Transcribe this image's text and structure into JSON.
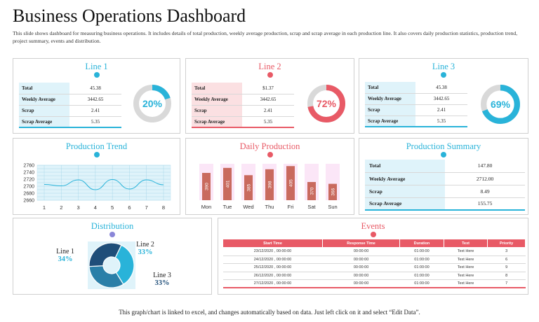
{
  "header": {
    "title": "Business Operations Dashboard",
    "subtitle": "This slide shows dashboard for measuring business operations. It includes details of total production, weekly average production, scrap and scrap average in each production line. It also covers daily production statistics, production trend, project summary, events and distribution."
  },
  "colors": {
    "blue": "#29b3d9",
    "red": "#e85a66",
    "navy": "#1f4e79",
    "lightblue": "#dff3fa",
    "pink": "#fbe0e2"
  },
  "lines": [
    {
      "title": "Line 1",
      "rows": [
        {
          "label": "Total",
          "value": "45.38"
        },
        {
          "label": "Weekly Average",
          "value": "3442.65"
        },
        {
          "label": "Scrap",
          "value": "2.41"
        },
        {
          "label": "Scrap Average",
          "value": "5.35"
        }
      ],
      "percent_label": "20%",
      "percent": 20
    },
    {
      "title": "Line 2",
      "rows": [
        {
          "label": "Total",
          "value": "$1.37"
        },
        {
          "label": "Weekly Average",
          "value": "3442.65"
        },
        {
          "label": "Scrap",
          "value": "2.41"
        },
        {
          "label": "Scrap Average",
          "value": "5.35"
        }
      ],
      "percent_label": "72%",
      "percent": 72
    },
    {
      "title": "Line 3",
      "rows": [
        {
          "label": "Total",
          "value": "45.38"
        },
        {
          "label": "Weekly Average",
          "value": "3442.65"
        },
        {
          "label": "Scrap",
          "value": "2.41"
        },
        {
          "label": "Scrap Average",
          "value": "5.35"
        }
      ],
      "percent_label": "69%",
      "percent": 69
    }
  ],
  "trend": {
    "title": "Production Trend",
    "chart_data": {
      "type": "line",
      "x": [
        1,
        2,
        3,
        4,
        5,
        6,
        7,
        8
      ],
      "x_ticks": [
        "1",
        "2",
        "3",
        "4",
        "5",
        "6",
        "7",
        "8"
      ],
      "y_ticks": [
        "2660",
        "2670",
        "2680",
        "2690",
        "2700",
        "2710",
        "2720",
        "2730",
        "2740",
        "2750",
        "2760"
      ],
      "ylim": [
        2660,
        2760
      ],
      "y": [
        2705,
        2701,
        2718,
        2690,
        2719,
        2692,
        2718,
        2704
      ],
      "grid": true
    }
  },
  "daily": {
    "title": "Daily Production",
    "chart_data": {
      "type": "bar",
      "categories": [
        "Mon",
        "Tue",
        "Wed",
        "Thu",
        "Fri",
        "Sat",
        "Sun"
      ],
      "values": [
        390,
        401,
        385,
        398,
        405,
        370,
        366
      ],
      "value_labels": [
        "390",
        "401",
        "385",
        "398",
        "405",
        "370",
        "366"
      ],
      "ylim": [
        330,
        410
      ]
    }
  },
  "summary": {
    "title": "Production Summary",
    "rows": [
      {
        "label": "Total",
        "value": "147.80"
      },
      {
        "label": "Weekly Average",
        "value": "2712.00"
      },
      {
        "label": "Scrap",
        "value": "8.49"
      },
      {
        "label": "Scrap Average",
        "value": "155.75"
      }
    ]
  },
  "distribution": {
    "title": "Distribution",
    "chart_data": {
      "type": "pie",
      "slices": [
        {
          "label": "Line 1",
          "value": 34,
          "pct": "34%",
          "color": "#29b3d9"
        },
        {
          "label": "Line 2",
          "value": 33,
          "pct": "33%",
          "color": "#2a7fa8"
        },
        {
          "label": "Line 3",
          "value": 33,
          "pct": "33%",
          "color": "#1f4e79"
        }
      ]
    }
  },
  "events": {
    "title": "Events",
    "columns": [
      "Start Time",
      "Response Time",
      "Duration",
      "Text",
      "Priority"
    ],
    "rows": [
      [
        "23/12/2020 , 00:00:00",
        "00:00:00",
        "01:00:00",
        "Text Here",
        "3"
      ],
      [
        "24/12/2020 , 00:00:00",
        "00:00:00",
        "01:00:00",
        "Text Here",
        "6"
      ],
      [
        "25/12/2020 , 00:00:00",
        "00:00:00",
        "01:00:00",
        "Text Here",
        "9"
      ],
      [
        "26/12/2020 , 00:00:00",
        "00:00:00",
        "01:00:00",
        "Text Here",
        "8"
      ],
      [
        "27/12/2020 , 00:00:00",
        "00:00:00",
        "01:00:00",
        "Text Here",
        "7"
      ]
    ]
  },
  "footer": "This graph/chart is linked to excel, and changes automatically based on data. Just left click on it and select “Edit Data”."
}
